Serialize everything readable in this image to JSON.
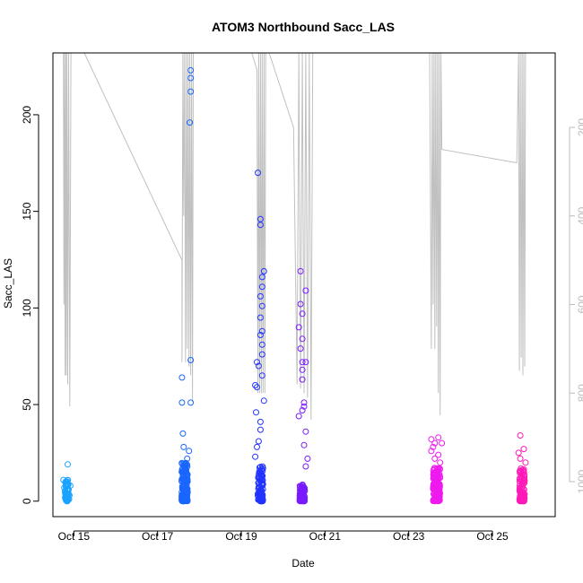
{
  "chart_data": {
    "type": "scatter",
    "title": "ATOM3 Northbound Sacc_LAS",
    "xlabel": "Date",
    "ylabel": "Sacc_LAS",
    "ylim": [
      -8,
      232
    ],
    "yticks": [
      0,
      50,
      100,
      150,
      200
    ],
    "xlim": [
      "2022-10-14 12:00",
      "2022-10-26 12:00"
    ],
    "xticks": [
      {
        "label": "Oct 15",
        "x": "2022-10-15"
      },
      {
        "label": "Oct 17",
        "x": "2022-10-17"
      },
      {
        "label": "Oct 19",
        "x": "2022-10-19"
      },
      {
        "label": "Oct 21",
        "x": "2022-10-21"
      },
      {
        "label": "Oct 23",
        "x": "2022-10-23"
      },
      {
        "label": "Oct 25",
        "x": "2022-10-25"
      }
    ],
    "right_axis": {
      "ylim": [
        1079,
        32
      ],
      "ticks": [
        200,
        400,
        600,
        800,
        1000
      ],
      "color": "#bbbbbb"
    },
    "grid": false,
    "legend": "none",
    "series": [
      {
        "color": "#1aa3ff",
        "x_range": [
          "2022-10-14 18:00",
          "2022-10-14 22:00"
        ],
        "points": [
          [
            "2022-10-14 18:00",
            11
          ],
          [
            "2022-10-14 18:30",
            7
          ],
          [
            "2022-10-14 19:00",
            5
          ],
          [
            "2022-10-14 19:30",
            9
          ],
          [
            "2022-10-14 20:00",
            4
          ],
          [
            "2022-10-14 20:30",
            19
          ],
          [
            "2022-10-14 21:00",
            6
          ],
          [
            "2022-10-14 21:30",
            3
          ],
          [
            "2022-10-14 22:00",
            8
          ],
          [
            "2022-10-14 20:15",
            2
          ],
          [
            "2022-10-14 19:15",
            10
          ],
          [
            "2022-10-14 21:15",
            1
          ]
        ],
        "cluster": {
          "center": "2022-10-14 20:00",
          "spread_hours": 2,
          "ymin": 0,
          "ymax": 11,
          "count": 60
        }
      },
      {
        "color": "#1a66ff",
        "x_range": [
          "2022-10-17 12:00",
          "2022-10-17 19:00"
        ],
        "points": [
          [
            "2022-10-17 14:00",
            64
          ],
          [
            "2022-10-17 14:00",
            51
          ],
          [
            "2022-10-17 14:30",
            35
          ],
          [
            "2022-10-17 15:00",
            28
          ],
          [
            "2022-10-17 19:00",
            223
          ],
          [
            "2022-10-17 19:00",
            219
          ],
          [
            "2022-10-17 19:00",
            212
          ],
          [
            "2022-10-17 18:30",
            196
          ],
          [
            "2022-10-17 19:00",
            73
          ],
          [
            "2022-10-17 19:00",
            51
          ],
          [
            "2022-10-17 18:00",
            26
          ],
          [
            "2022-10-17 17:00",
            22
          ]
        ],
        "cluster": {
          "center": "2022-10-17 15:30",
          "spread_hours": 3.5,
          "ymin": 0,
          "ymax": 20,
          "count": 170
        }
      },
      {
        "color": "#2233ff",
        "x_range": [
          "2022-10-19 08:00",
          "2022-10-19 14:00"
        ],
        "points": [
          [
            "2022-10-19 09:30",
            170
          ],
          [
            "2022-10-19 11:00",
            146
          ],
          [
            "2022-10-19 11:00",
            143
          ],
          [
            "2022-10-19 13:00",
            119
          ],
          [
            "2022-10-19 12:00",
            116
          ],
          [
            "2022-10-19 12:00",
            111
          ],
          [
            "2022-10-19 11:00",
            106
          ],
          [
            "2022-10-19 12:00",
            101
          ],
          [
            "2022-10-19 11:00",
            95
          ],
          [
            "2022-10-19 12:00",
            88
          ],
          [
            "2022-10-19 11:00",
            86
          ],
          [
            "2022-10-19 12:00",
            81
          ],
          [
            "2022-10-19 12:00",
            76
          ],
          [
            "2022-10-19 09:00",
            72
          ],
          [
            "2022-10-19 10:00",
            70
          ],
          [
            "2022-10-19 12:00",
            65
          ],
          [
            "2022-10-19 08:00",
            60
          ],
          [
            "2022-10-19 09:00",
            59
          ],
          [
            "2022-10-19 13:00",
            52
          ],
          [
            "2022-10-19 08:30",
            46
          ],
          [
            "2022-10-19 11:00",
            41
          ],
          [
            "2022-10-19 11:00",
            37
          ],
          [
            "2022-10-19 10:00",
            31
          ],
          [
            "2022-10-19 09:00",
            28
          ],
          [
            "2022-10-19 08:00",
            23
          ]
        ],
        "cluster": {
          "center": "2022-10-19 11:00",
          "spread_hours": 3,
          "ymin": 0,
          "ymax": 18,
          "count": 90
        }
      },
      {
        "color": "#7a1aff",
        "x_range": [
          "2022-10-20 08:00",
          "2022-10-20 14:00"
        ],
        "points": [
          [
            "2022-10-20 10:00",
            119
          ],
          [
            "2022-10-20 13:00",
            109
          ],
          [
            "2022-10-20 10:00",
            102
          ],
          [
            "2022-10-20 11:00",
            97
          ],
          [
            "2022-10-20 09:00",
            90
          ],
          [
            "2022-10-20 11:00",
            84
          ],
          [
            "2022-10-20 10:00",
            79
          ],
          [
            "2022-10-20 11:00",
            72
          ],
          [
            "2022-10-20 13:00",
            72
          ],
          [
            "2022-10-20 11:00",
            68
          ],
          [
            "2022-10-20 11:00",
            63
          ],
          [
            "2022-10-20 12:00",
            51
          ],
          [
            "2022-10-20 12:00",
            49
          ],
          [
            "2022-10-20 11:00",
            47
          ],
          [
            "2022-10-20 09:00",
            44
          ],
          [
            "2022-10-20 13:00",
            36
          ],
          [
            "2022-10-20 12:00",
            29
          ],
          [
            "2022-10-20 14:00",
            22
          ],
          [
            "2022-10-20 13:00",
            18
          ]
        ],
        "cluster": {
          "center": "2022-10-20 11:00",
          "spread_hours": 3,
          "ymin": 0,
          "ymax": 9,
          "count": 90
        }
      },
      {
        "color": "#ee1aee",
        "x_range": [
          "2022-10-23 12:00",
          "2022-10-23 20:00"
        ],
        "points": [
          [
            "2022-10-23 17:00",
            33
          ],
          [
            "2022-10-23 13:00",
            32
          ],
          [
            "2022-10-23 15:00",
            30
          ],
          [
            "2022-10-23 19:00",
            30
          ],
          [
            "2022-10-23 14:00",
            28
          ],
          [
            "2022-10-23 13:00",
            26
          ],
          [
            "2022-10-23 17:00",
            24
          ],
          [
            "2022-10-23 15:00",
            22
          ],
          [
            "2022-10-23 18:00",
            20
          ]
        ],
        "cluster": {
          "center": "2022-10-23 16:00",
          "spread_hours": 4,
          "ymin": 0,
          "ymax": 18,
          "count": 150
        }
      },
      {
        "color": "#ff1ab8",
        "x_range": [
          "2022-10-25 14:00",
          "2022-10-25 20:00"
        ],
        "points": [
          [
            "2022-10-25 16:00",
            34
          ],
          [
            "2022-10-25 18:00",
            27
          ],
          [
            "2022-10-25 15:00",
            25
          ],
          [
            "2022-10-25 16:00",
            22
          ],
          [
            "2022-10-25 19:00",
            20
          ]
        ],
        "cluster": {
          "center": "2022-10-25 17:00",
          "spread_hours": 3,
          "ymin": 0,
          "ymax": 17,
          "count": 100
        }
      }
    ],
    "line_series": {
      "color": "#c0c0c0",
      "axis": "right",
      "points": [
        [
          "2022-10-14 18:00",
          32
        ],
        [
          "2022-10-14 18:20",
          600
        ],
        [
          "2022-10-14 18:40",
          32
        ],
        [
          "2022-10-14 19:00",
          760
        ],
        [
          "2022-10-14 19:20",
          32
        ],
        [
          "2022-10-14 19:40",
          760
        ],
        [
          "2022-10-14 20:00",
          32
        ],
        [
          "2022-10-14 20:30",
          780
        ],
        [
          "2022-10-14 21:00",
          32
        ],
        [
          "2022-10-14 21:40",
          830
        ],
        [
          "2022-10-14 22:20",
          32
        ],
        [
          "2022-10-15 06:00",
          32
        ],
        [
          "2022-10-17 14:00",
          500
        ],
        [
          "2022-10-17 14:00",
          730
        ],
        [
          "2022-10-17 14:30",
          32
        ],
        [
          "2022-10-17 15:00",
          400
        ],
        [
          "2022-10-17 15:30",
          32
        ],
        [
          "2022-10-17 16:00",
          730
        ],
        [
          "2022-10-17 16:30",
          32
        ],
        [
          "2022-10-17 17:00",
          700
        ],
        [
          "2022-10-17 17:30",
          32
        ],
        [
          "2022-10-17 18:00",
          740
        ],
        [
          "2022-10-17 18:30",
          32
        ],
        [
          "2022-10-17 19:00",
          760
        ],
        [
          "2022-10-17 19:30",
          32
        ],
        [
          "2022-10-17 20:00",
          820
        ],
        [
          "2022-10-17 20:30",
          32
        ],
        [
          "2022-10-19 06:00",
          32
        ],
        [
          "2022-10-19 09:00",
          70
        ],
        [
          "2022-10-19 09:30",
          800
        ],
        [
          "2022-10-19 10:00",
          32
        ],
        [
          "2022-10-19 10:30",
          800
        ],
        [
          "2022-10-19 11:00",
          32
        ],
        [
          "2022-10-19 11:30",
          800
        ],
        [
          "2022-10-19 12:00",
          32
        ],
        [
          "2022-10-19 12:30",
          800
        ],
        [
          "2022-10-19 13:00",
          32
        ],
        [
          "2022-10-19 13:30",
          800
        ],
        [
          "2022-10-19 14:00",
          32
        ],
        [
          "2022-10-19 16:00",
          32
        ],
        [
          "2022-10-20 06:00",
          200
        ],
        [
          "2022-10-20 08:00",
          780
        ],
        [
          "2022-10-20 09:00",
          32
        ],
        [
          "2022-10-20 10:00",
          790
        ],
        [
          "2022-10-20 11:00",
          32
        ],
        [
          "2022-10-20 12:00",
          800
        ],
        [
          "2022-10-20 13:00",
          32
        ],
        [
          "2022-10-20 14:00",
          810
        ],
        [
          "2022-10-20 15:00",
          32
        ],
        [
          "2022-10-20 16:00",
          860
        ],
        [
          "2022-10-20 17:00",
          32
        ],
        [
          "2022-10-23 12:00",
          32
        ],
        [
          "2022-10-23 13:00",
          700
        ],
        [
          "2022-10-23 13:30",
          32
        ],
        [
          "2022-10-23 14:00",
          600
        ],
        [
          "2022-10-23 14:30",
          32
        ],
        [
          "2022-10-23 15:00",
          700
        ],
        [
          "2022-10-23 15:30",
          32
        ],
        [
          "2022-10-23 16:00",
          650
        ],
        [
          "2022-10-23 16:30",
          32
        ],
        [
          "2022-10-23 17:00",
          800
        ],
        [
          "2022-10-23 17:30",
          32
        ],
        [
          "2022-10-23 18:00",
          850
        ],
        [
          "2022-10-23 18:30",
          32
        ],
        [
          "2022-10-23 19:00",
          250
        ],
        [
          "2022-10-25 14:00",
          280
        ],
        [
          "2022-10-25 15:00",
          32
        ],
        [
          "2022-10-25 15:30",
          750
        ],
        [
          "2022-10-25 16:00",
          32
        ],
        [
          "2022-10-25 16:30",
          720
        ],
        [
          "2022-10-25 17:00",
          32
        ],
        [
          "2022-10-25 17:30",
          760
        ],
        [
          "2022-10-25 18:00",
          32
        ],
        [
          "2022-10-25 18:30",
          740
        ],
        [
          "2022-10-25 19:00",
          32
        ]
      ]
    }
  }
}
